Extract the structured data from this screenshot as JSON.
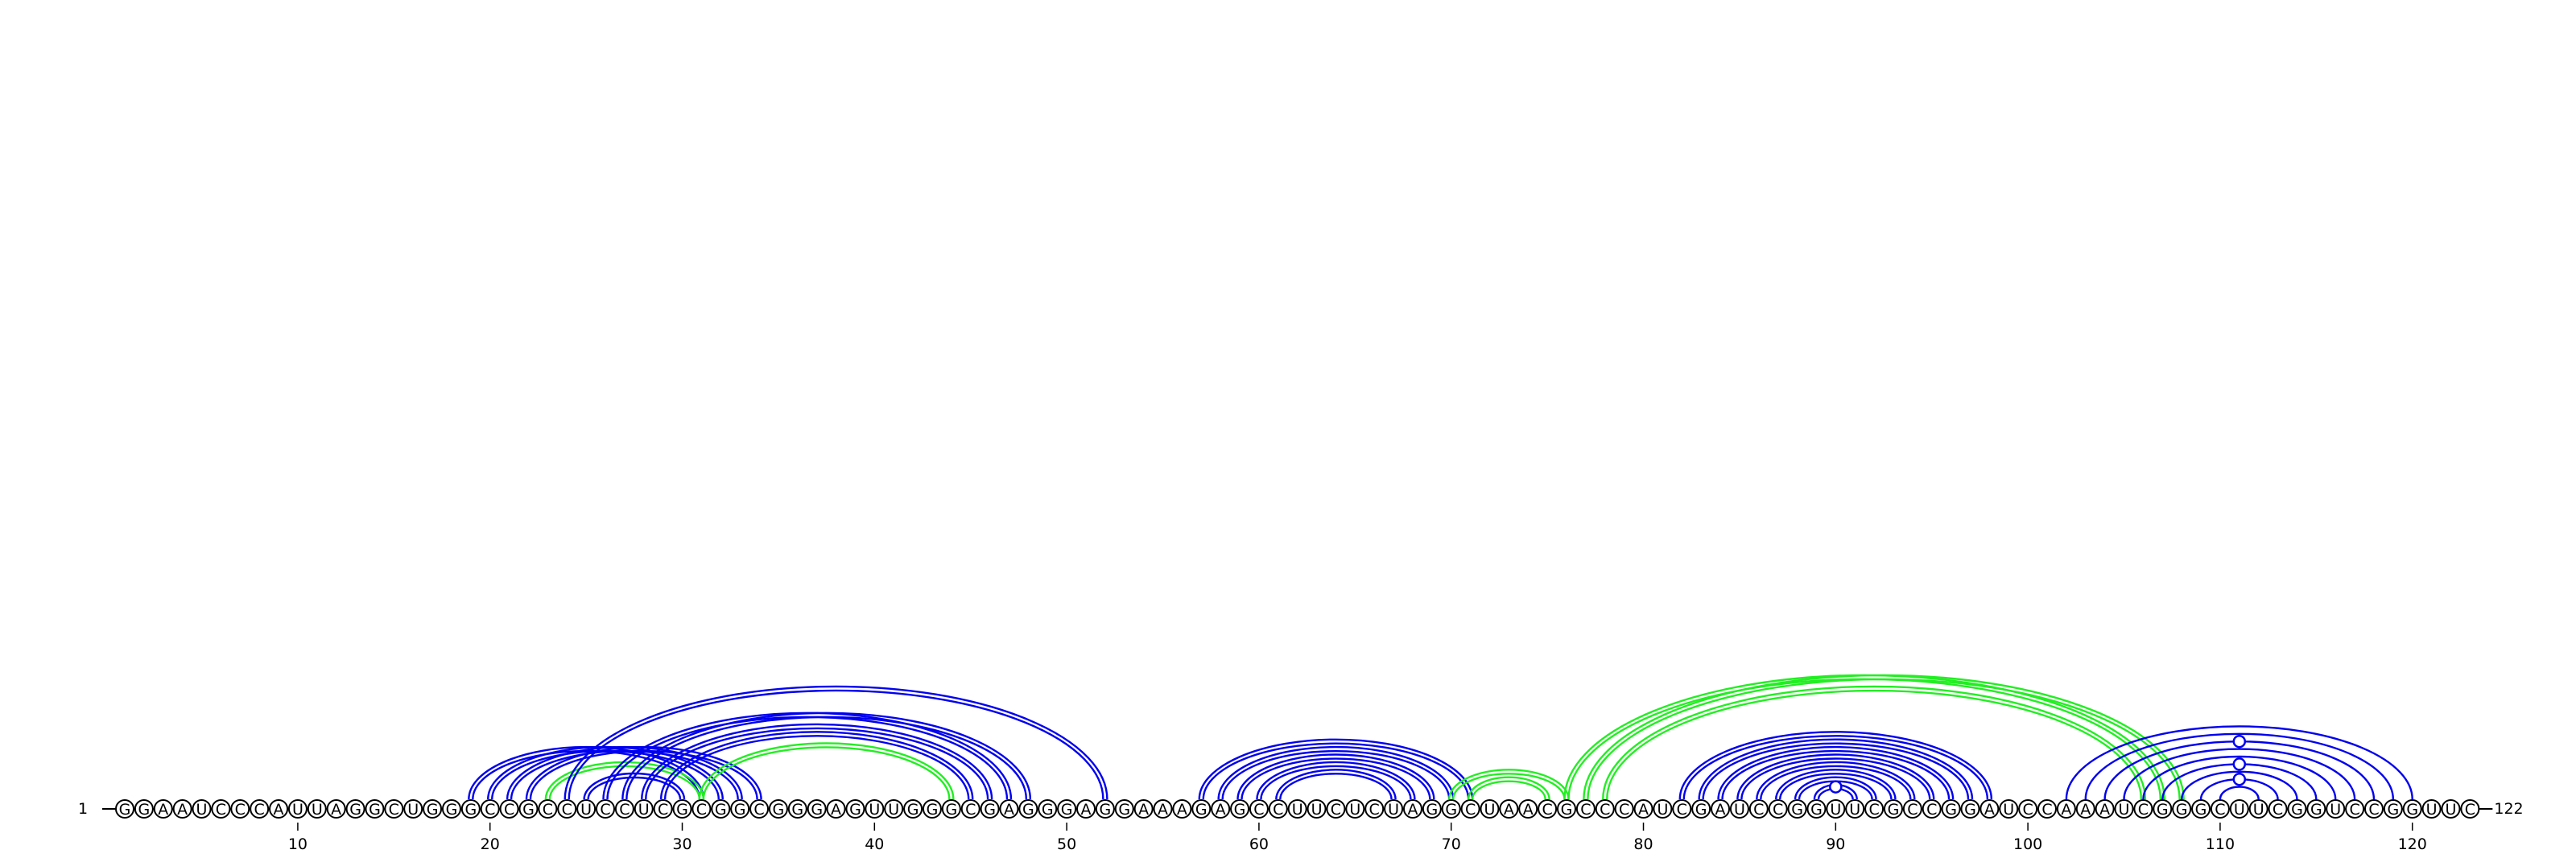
{
  "sequence": "GGAAUCCCAUUAGGCUGGGCCGCCUCCUCGCGGCGGGAGUUGGGCGAGGGAGGAAAGAGCCUUCUCUAGGCUAACGCCCAUCGAUCCGGUUCGCCGGAUCCAAAUCGGGCUUCGGUCCGGUUC",
  "start_label": "1",
  "end_label": "122",
  "ticks": [
    10,
    20,
    30,
    40,
    50,
    60,
    70,
    80,
    90,
    100,
    110,
    120
  ],
  "colors": {
    "blue": "#0000ee",
    "green": "#22ee22",
    "line": "#000000"
  },
  "arcs": [
    {
      "i": 19,
      "j": 31,
      "color": "blue",
      "double": true
    },
    {
      "i": 20,
      "j": 32,
      "color": "blue",
      "double": true
    },
    {
      "i": 21,
      "j": 33,
      "color": "blue",
      "double": true
    },
    {
      "i": 22,
      "j": 34,
      "color": "blue",
      "double": true
    },
    {
      "i": 23,
      "j": 31,
      "color": "green",
      "double": true
    },
    {
      "i": 24,
      "j": 52,
      "color": "blue",
      "double": true
    },
    {
      "i": 25,
      "j": 30,
      "color": "blue",
      "double": true
    },
    {
      "i": 26,
      "j": 47,
      "color": "blue",
      "double": true
    },
    {
      "i": 27,
      "j": 48,
      "color": "blue",
      "double": true
    },
    {
      "i": 28,
      "j": 46,
      "color": "blue",
      "double": true
    },
    {
      "i": 29,
      "j": 45,
      "color": "blue",
      "double": true
    },
    {
      "i": 31,
      "j": 44,
      "color": "green",
      "double": true
    },
    {
      "i": 57,
      "j": 71,
      "color": "blue",
      "double": true
    },
    {
      "i": 58,
      "j": 70,
      "color": "blue",
      "double": true
    },
    {
      "i": 59,
      "j": 69,
      "color": "blue",
      "double": true
    },
    {
      "i": 60,
      "j": 68,
      "color": "blue",
      "double": true
    },
    {
      "i": 61,
      "j": 67,
      "color": "blue",
      "double": true
    },
    {
      "i": 70,
      "j": 76,
      "color": "green",
      "double": true
    },
    {
      "i": 71,
      "j": 75,
      "color": "green",
      "double": true
    },
    {
      "i": 76,
      "j": 107,
      "color": "green",
      "double": true
    },
    {
      "i": 77,
      "j": 108,
      "color": "green",
      "double": true
    },
    {
      "i": 78,
      "j": 106,
      "color": "green",
      "double": true
    },
    {
      "i": 82,
      "j": 98,
      "color": "blue",
      "double": true
    },
    {
      "i": 83,
      "j": 97,
      "color": "blue",
      "double": true
    },
    {
      "i": 84,
      "j": 96,
      "color": "blue",
      "double": true
    },
    {
      "i": 85,
      "j": 95,
      "color": "blue",
      "double": true
    },
    {
      "i": 86,
      "j": 94,
      "color": "blue",
      "double": true
    },
    {
      "i": 87,
      "j": 93,
      "color": "blue",
      "double": true
    },
    {
      "i": 88,
      "j": 92,
      "color": "blue",
      "double": true
    },
    {
      "i": 89,
      "j": 91,
      "color": "blue",
      "double": true
    },
    {
      "i": 102,
      "j": 120,
      "color": "blue",
      "double": false
    },
    {
      "i": 103,
      "j": 119,
      "color": "blue",
      "double": false
    },
    {
      "i": 104,
      "j": 118,
      "color": "blue",
      "double": false
    },
    {
      "i": 105,
      "j": 117,
      "color": "blue",
      "double": false
    },
    {
      "i": 106,
      "j": 116,
      "color": "blue",
      "double": false
    },
    {
      "i": 107,
      "j": 115,
      "color": "blue",
      "double": false
    },
    {
      "i": 108,
      "j": 114,
      "color": "blue",
      "double": false
    },
    {
      "i": 109,
      "j": 113,
      "color": "blue",
      "double": false
    },
    {
      "i": 110,
      "j": 112,
      "color": "blue",
      "double": false
    }
  ],
  "noncanonical_markers": [
    {
      "i": 89,
      "j": 91
    },
    {
      "i": 104,
      "j": 118
    },
    {
      "i": 107,
      "j": 115
    },
    {
      "i": 109,
      "j": 113
    }
  ]
}
